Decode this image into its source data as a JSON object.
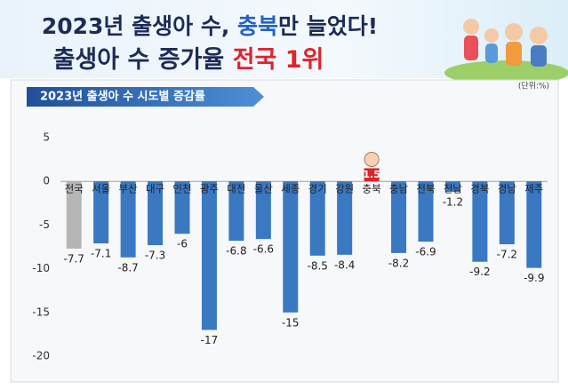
{
  "chart_data": {
    "type": "bar",
    "title": {
      "parts": [
        "2023년 출생아 수, ",
        "충북",
        "만 늘었다!"
      ]
    },
    "subtitle": {
      "parts": [
        "출생아 수 증가율 ",
        "전국 1위"
      ]
    },
    "chart_label": "2023년 출생아 수 시도별 증감률",
    "unit": "(단위:%)",
    "categories": [
      "전국",
      "서울",
      "부산",
      "대구",
      "인천",
      "광주",
      "대전",
      "울산",
      "세종",
      "경기",
      "강원",
      "충북",
      "충남",
      "전북",
      "전남",
      "경북",
      "경남",
      "제주"
    ],
    "values": [
      -7.7,
      -7.1,
      -8.7,
      -7.3,
      -6,
      -17,
      -6.8,
      -6.6,
      -15,
      -8.5,
      -8.4,
      1.5,
      -8.2,
      -6.9,
      -1.2,
      -9.2,
      -7.2,
      -9.9
    ],
    "colors": [
      "#b5b5b5",
      "#3a78c2",
      "#3a78c2",
      "#3a78c2",
      "#3a78c2",
      "#3a78c2",
      "#3a78c2",
      "#3a78c2",
      "#3a78c2",
      "#3a78c2",
      "#3a78c2",
      "#d8262b",
      "#3a78c2",
      "#3a78c2",
      "#3a78c2",
      "#3a78c2",
      "#3a78c2",
      "#3a78c2"
    ],
    "ylim": [
      -20,
      5
    ],
    "yticks": [
      5,
      0,
      -5,
      -10,
      -15,
      -20
    ]
  }
}
